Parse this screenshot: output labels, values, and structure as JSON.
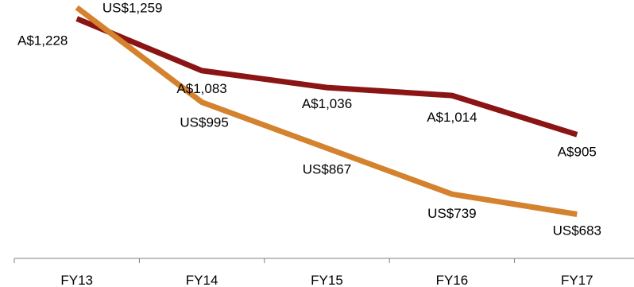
{
  "chart_data": {
    "type": "line",
    "categories": [
      "FY13",
      "FY14",
      "FY15",
      "FY16",
      "FY17"
    ],
    "series": [
      {
        "values": [
          1228,
          1083,
          1036,
          1014,
          905
        ],
        "labels": [
          "A$1,228",
          "A$1,083",
          "A$1,036",
          "A$1,014",
          "A$905"
        ],
        "color": "#8B1414"
      },
      {
        "values": [
          1259,
          995,
          867,
          739,
          683
        ],
        "labels": [
          "US$1,259",
          "US$995",
          "US$867",
          "US$739",
          "US$683"
        ],
        "color": "#D4822E"
      }
    ],
    "ylim": [
      560,
      1280
    ],
    "grid": false,
    "legend": "none",
    "axis_color": "#808080"
  }
}
